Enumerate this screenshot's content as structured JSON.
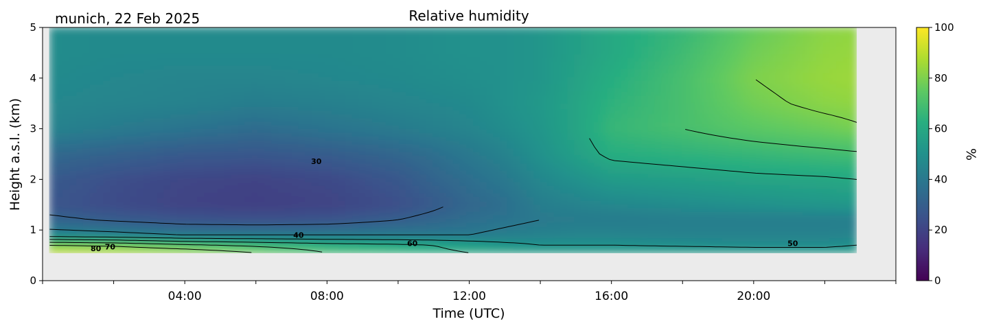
{
  "chart_data": {
    "type": "heatmap",
    "title": "Relative humidity",
    "location_date": "munich, 22 Feb 2025",
    "xlabel": "Time (UTC)",
    "ylabel": "Height a.s.l. (km)",
    "colorbar_label": "%",
    "xlim_hours": [
      0,
      24
    ],
    "data_extent_hours": [
      0.2,
      22.9
    ],
    "ylim": [
      0,
      5
    ],
    "data_bottom_km": 0.55,
    "x_ticks": [
      "04:00",
      "08:00",
      "12:00",
      "16:00",
      "20:00"
    ],
    "x_tick_hours": [
      4,
      8,
      12,
      16,
      20
    ],
    "y_ticks": [
      0,
      1,
      2,
      3,
      4,
      5
    ],
    "clim": [
      0,
      100
    ],
    "colorbar_ticks": [
      0,
      20,
      40,
      60,
      80,
      100
    ],
    "colormap": "viridis",
    "no_data_color": "#ebebeb",
    "contour_levels": [
      30,
      40,
      50,
      60,
      70,
      80
    ],
    "contour_labels": [
      {
        "text": "30",
        "hour": 7.7,
        "km": 2.36
      },
      {
        "text": "40",
        "hour": 7.2,
        "km": 0.9
      },
      {
        "text": "60",
        "hour": 10.4,
        "km": 0.74
      },
      {
        "text": "50",
        "hour": 21.1,
        "km": 0.74
      },
      {
        "text": "80",
        "hour": 1.5,
        "km": 0.64
      },
      {
        "text": "70",
        "hour": 1.9,
        "km": 0.67
      }
    ],
    "rh_grid": {
      "hours": [
        0.2,
        2,
        4,
        6,
        8,
        10,
        11,
        12,
        13,
        14,
        15,
        16,
        18,
        20,
        22,
        22.9
      ],
      "heights_km": [
        0.55,
        0.7,
        0.9,
        1.2,
        1.5,
        2.0,
        2.5,
        3.0,
        3.5,
        4.0,
        4.5,
        5.0
      ],
      "values": [
        [
          95,
          92,
          88,
          80,
          70,
          65,
          62,
          60,
          58,
          57,
          56,
          56,
          56,
          55,
          55,
          56
        ],
        [
          80,
          78,
          72,
          68,
          64,
          62,
          60,
          57,
          53,
          50,
          50,
          50,
          49,
          48,
          48,
          50
        ],
        [
          45,
          43,
          40,
          40,
          40,
          40,
          40,
          40,
          42,
          44,
          45,
          45,
          44,
          44,
          44,
          45
        ],
        [
          32,
          29,
          26,
          25,
          26,
          30,
          33,
          36,
          38,
          40,
          41,
          41,
          42,
          42,
          42,
          42
        ],
        [
          26,
          23,
          20,
          19,
          20,
          24,
          28,
          33,
          36,
          42,
          44,
          46,
          48,
          50,
          52,
          53
        ],
        [
          28,
          24,
          21,
          20,
          22,
          27,
          32,
          36,
          40,
          46,
          50,
          54,
          56,
          58,
          59,
          60
        ],
        [
          34,
          31,
          28,
          27,
          29,
          33,
          36,
          40,
          44,
          50,
          56,
          62,
          64,
          66,
          68,
          69
        ],
        [
          44,
          41,
          38,
          35,
          38,
          41,
          43,
          45,
          48,
          52,
          58,
          66,
          70,
          74,
          77,
          79
        ],
        [
          46,
          45,
          44,
          42,
          43,
          45,
          46,
          47,
          50,
          53,
          58,
          64,
          70,
          78,
          82,
          83
        ],
        [
          47,
          46,
          45,
          45,
          46,
          47,
          48,
          49,
          50,
          52,
          57,
          62,
          70,
          80,
          84,
          85
        ],
        [
          48,
          47,
          47,
          47,
          47,
          48,
          49,
          50,
          50,
          52,
          56,
          60,
          68,
          78,
          83,
          84
        ],
        [
          48,
          47,
          47,
          47,
          47,
          48,
          49,
          50,
          50,
          52,
          56,
          60,
          66,
          76,
          82,
          83
        ]
      ]
    }
  }
}
